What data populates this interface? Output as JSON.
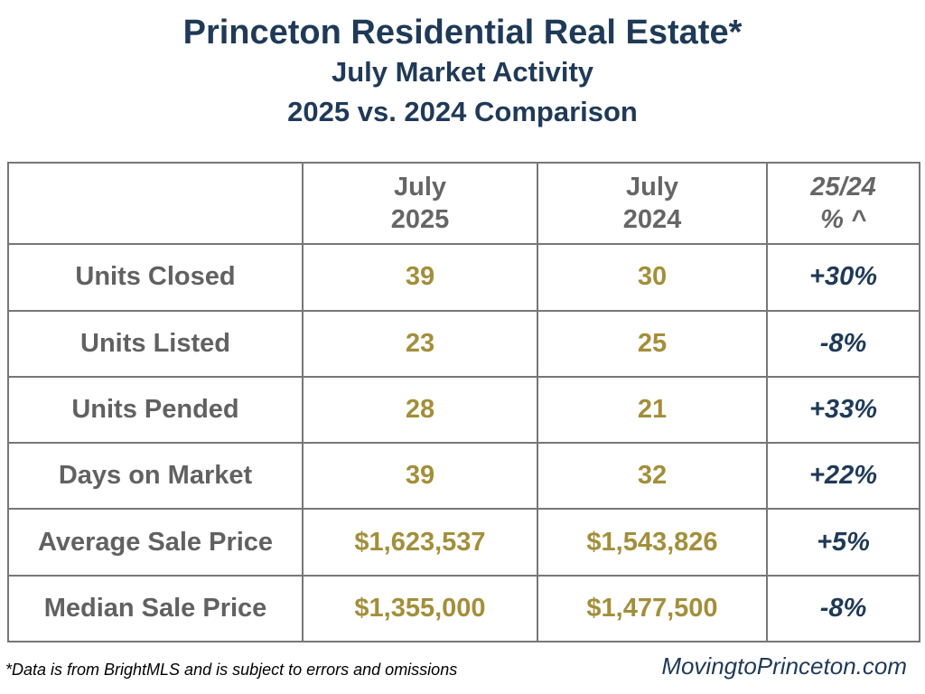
{
  "header": {
    "title": "Princeton Residential Real Estate*",
    "subtitle": "July Market Activity",
    "comparison": "2025 vs. 2024 Comparison"
  },
  "table": {
    "columns": [
      {
        "line1": "",
        "line2": ""
      },
      {
        "line1": "July",
        "line2": "2025"
      },
      {
        "line1": "July",
        "line2": "2024"
      },
      {
        "line1": "25/24",
        "line2": "% ^"
      }
    ],
    "rows": [
      {
        "label": "Units Closed",
        "y2025": "39",
        "y2024": "30",
        "change": "+30%"
      },
      {
        "label": "Units Listed",
        "y2025": "23",
        "y2024": "25",
        "change": "-8%"
      },
      {
        "label": "Units Pended",
        "y2025": "28",
        "y2024": "21",
        "change": "+33%"
      },
      {
        "label": "Days on Market",
        "y2025": "39",
        "y2024": "32",
        "change": "+22%"
      },
      {
        "label": "Average Sale Price",
        "y2025": "$1,623,537",
        "y2024": "$1,543,826",
        "change": "+5%"
      },
      {
        "label": "Median Sale Price",
        "y2025": "$1,355,000",
        "y2024": "$1,477,500",
        "change": "-8%"
      }
    ]
  },
  "footer": {
    "note": "*Data is from BrightMLS and is subject to errors and omissions",
    "site": "MovingtoPrinceton.com"
  },
  "colors": {
    "title": "#1f3a57",
    "label_gray": "#616161",
    "value_gold": "#a38f3a",
    "percent_navy": "#1f3a57",
    "border": "#777777"
  }
}
